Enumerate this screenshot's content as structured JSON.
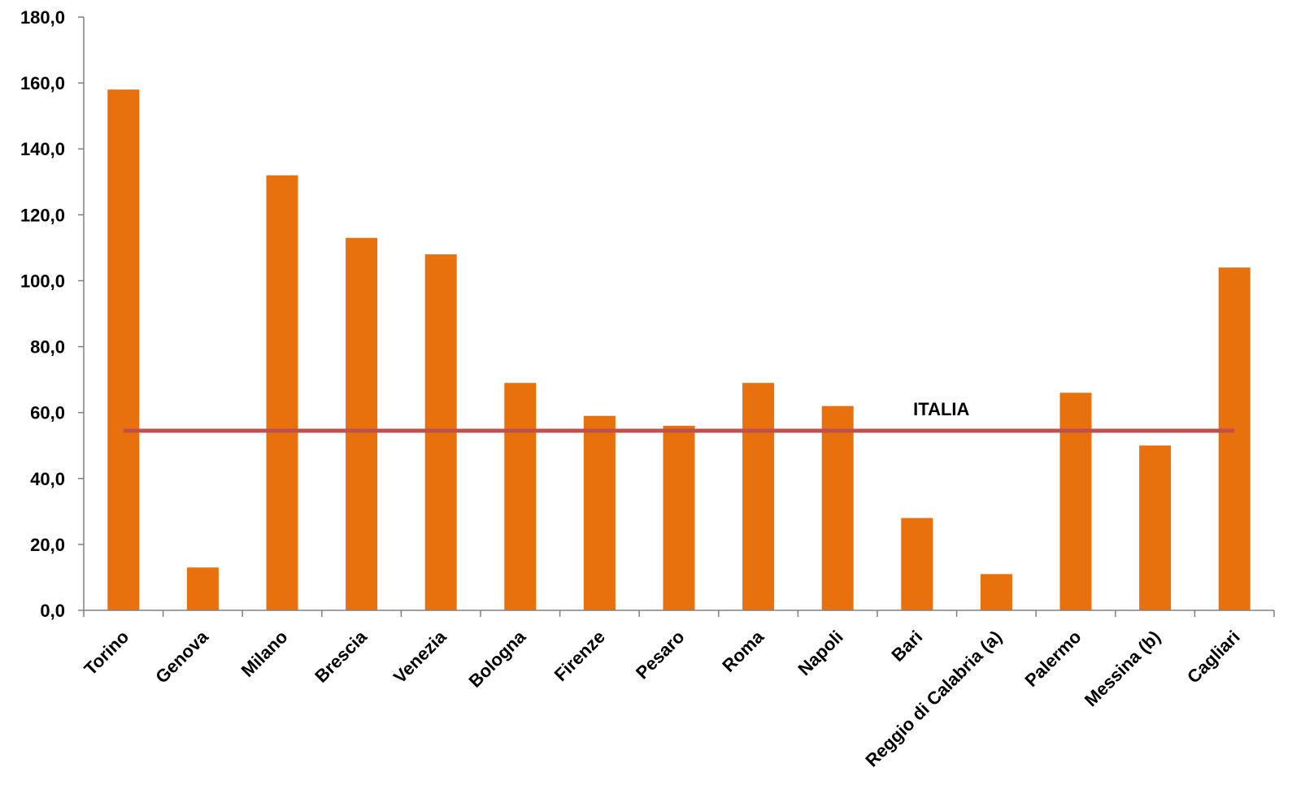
{
  "chart_data": {
    "type": "bar",
    "title": "",
    "xlabel": "",
    "ylabel": "",
    "ylim": [
      0,
      180
    ],
    "ytick_step": 20,
    "ytick_labels": [
      "0,0",
      "20,0",
      "40,0",
      "60,0",
      "80,0",
      "100,0",
      "120,0",
      "140,0",
      "160,0",
      "180,0"
    ],
    "grid": false,
    "legend": "none",
    "categories": [
      "Torino",
      "Genova",
      "Milano",
      "Brescia",
      "Venezia",
      "Bologna",
      "Firenze",
      "Pesaro",
      "Roma",
      "Napoli",
      "Bari",
      "Reggio di Calabria (a)",
      "Palermo",
      "Messina (b)",
      "Cagliari"
    ],
    "values": [
      158,
      13,
      132,
      113,
      108,
      69,
      59,
      56,
      69,
      62,
      28,
      11,
      66,
      50,
      104
    ],
    "bar_color": "#E8700D",
    "reference_line": {
      "label": "ITALIA",
      "value": 54.5,
      "color": "#C0504D"
    }
  }
}
